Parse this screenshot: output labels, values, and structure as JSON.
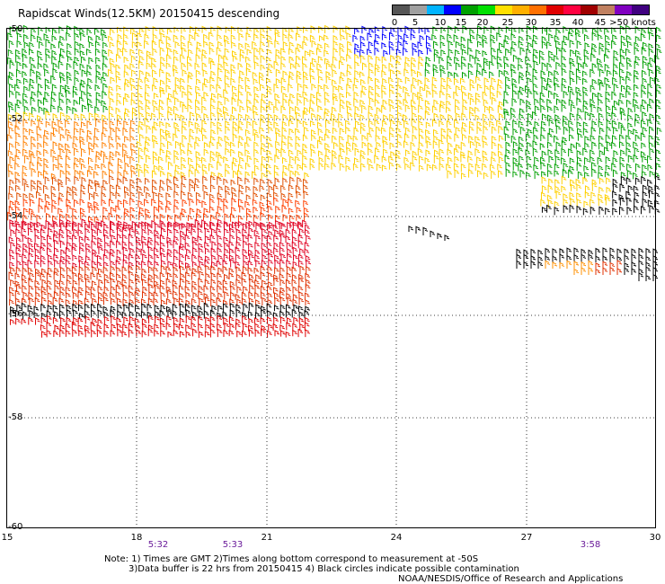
{
  "title": "Rapidscat Winds(12.5KM) 20150415 descending",
  "legend": {
    "labels": [
      "0",
      "5",
      "10",
      "15",
      "20",
      "25",
      "30",
      "35",
      "40",
      "45",
      ">50 knots"
    ],
    "colors": [
      "#555555",
      "#a0a0a0",
      "#00b4ff",
      "#0000ff",
      "#00a000",
      "#00e000",
      "#ffe000",
      "#ffb000",
      "#ff7000",
      "#e00000",
      "#ff0040",
      "#a00000",
      "#c08060",
      "#8000c0",
      "#400080"
    ]
  },
  "map": {
    "lat_labels": [
      "-50",
      "-52",
      "-54",
      "-56",
      "-58",
      "-60"
    ],
    "lon_labels": [
      "15",
      "18",
      "21",
      "24",
      "27",
      "30"
    ],
    "time_labels": [
      "5:32",
      "5:33",
      "3:58"
    ]
  },
  "notes": {
    "line1": "Note: 1) Times are GMT 2)Times along bottom correspond to measurement at -50S",
    "line2": "3)Data buffer is 22 hrs from 20150415 4) Black circles indicate possible contamination",
    "line3": "NOAA/NESDIS/Office of Research and Applications"
  }
}
